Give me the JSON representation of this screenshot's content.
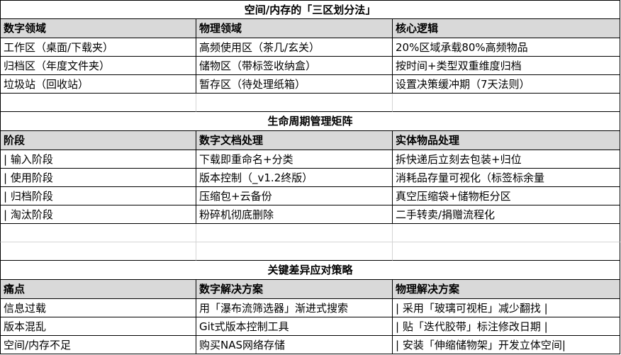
{
  "sections": [
    {
      "title": "空间/内存的「三区划分法」",
      "headers": [
        "数字领域",
        "物理领域",
        "核心逻辑"
      ],
      "rows": [
        [
          "工作区（桌面/下载夹）",
          "高频使用区（茶几/玄关）",
          "20%区域承载80%高频物品"
        ],
        [
          "归档区（年度文件夹）",
          "储物区（带标签收纳盒）",
          "按时间+类型双重维度归档"
        ],
        [
          "垃圾站（回收站）",
          "暂存区（待处理纸箱）",
          "设置决策缓冲期（7天法则）"
        ]
      ],
      "empty_rows": 1
    },
    {
      "title": "生命周期管理矩阵",
      "headers": [
        "阶段",
        "数字文档处理",
        "实体物品处理"
      ],
      "rows": [
        [
          "| 输入阶段",
          "下载即重命名+分类",
          "拆快递后立刻去包装+归位"
        ],
        [
          "| 使用阶段",
          "版本控制（_v1.2终版）",
          "消耗品存量可视化（标签标余量"
        ],
        [
          "| 归档阶段",
          "压缩包+云备份",
          "真空压缩袋+储物柜分区"
        ],
        [
          "| 淘汰阶段",
          "粉碎机彻底删除",
          "二手转卖/捐赠流程化"
        ]
      ],
      "empty_rows": 2
    },
    {
      "title": "关键差异应对策略",
      "headers": [
        "痛点",
        "数字解决方案",
        "物理解决方案"
      ],
      "rows": [
        [
          "信息过载",
          "用「瀑布流筛选器」渐进式搜索",
          "| 采用「玻璃可视柜」减少翻找    |"
        ],
        [
          "版本混乱",
          "Git式版本控制工具",
          "| 贴「迭代胶带」标注修改日期    |"
        ],
        [
          "空间/内存不足",
          "购买NAS网络存储",
          "| 安装「伸缩储物架」开发立体空间|"
        ]
      ],
      "empty_rows": 0
    }
  ]
}
